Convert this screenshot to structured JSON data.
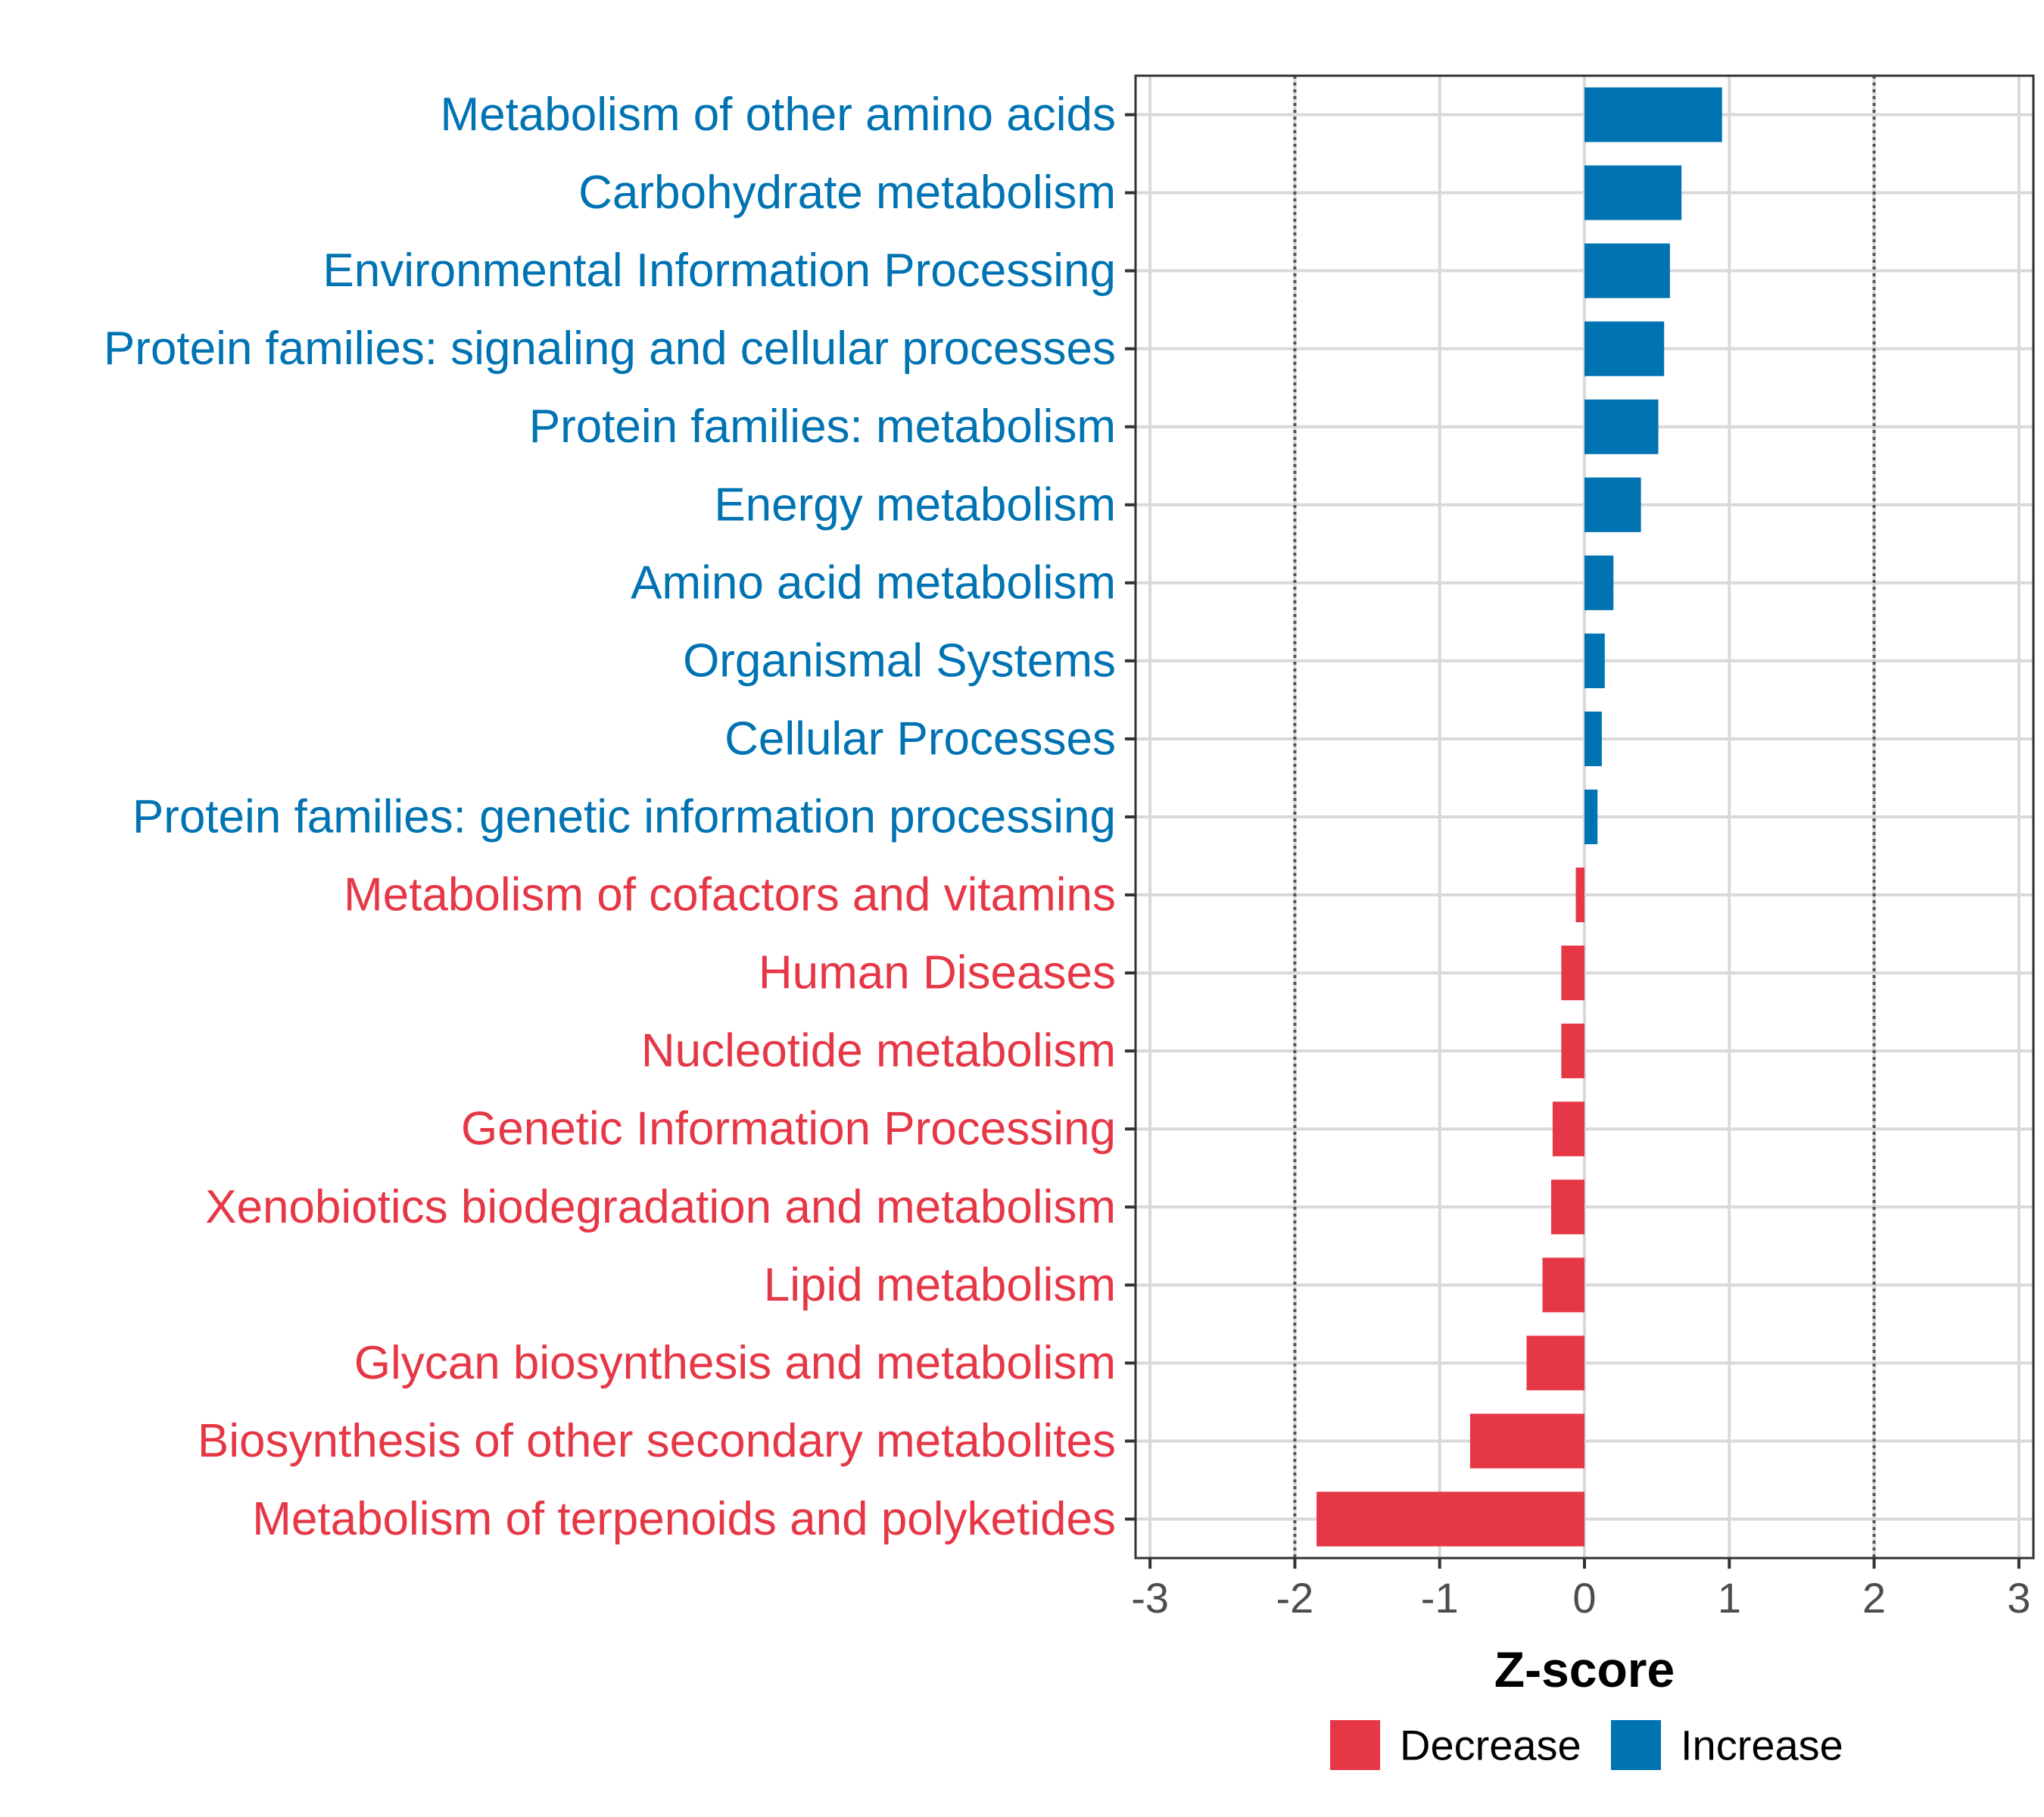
{
  "colors": {
    "increase": "#0073B3",
    "decrease": "#E63746",
    "grid": "#D9D9D9",
    "axis": "#333333",
    "reference_line": "#555555"
  },
  "legend": {
    "items": [
      {
        "label": "Decrease",
        "color": "#E63746"
      },
      {
        "label": "Increase",
        "color": "#0073B3"
      }
    ]
  },
  "chart_data": {
    "type": "bar",
    "orientation": "horizontal",
    "title": "",
    "xlabel": "Z-score",
    "ylabel": "",
    "xlim": [
      -3.1,
      3.1
    ],
    "xticks": [
      "-3",
      "-2",
      "-1",
      "0",
      "1",
      "2",
      "3"
    ],
    "xtick_values": [
      -3,
      -2,
      -1,
      0,
      1,
      2,
      3
    ],
    "reference_lines": [
      -2,
      2
    ],
    "grid": true,
    "legend_position": "bottom",
    "categories": [
      "Metabolism of other amino acids",
      "Carbohydrate metabolism",
      "Environmental Information Processing",
      "Protein families: signaling and cellular processes",
      "Protein families: metabolism",
      "Energy metabolism",
      "Amino acid metabolism",
      "Organismal Systems",
      "Cellular Processes",
      "Protein families: genetic information processing",
      "Metabolism of cofactors and vitamins",
      "Human Diseases",
      "Nucleotide metabolism",
      "Genetic Information Processing",
      "Xenobiotics biodegradation and metabolism",
      "Lipid metabolism",
      "Glycan biosynthesis and metabolism",
      "Biosynthesis of other secondary metabolites",
      "Metabolism of terpenoids and polyketides"
    ],
    "values": [
      0.95,
      0.67,
      0.59,
      0.55,
      0.51,
      0.39,
      0.2,
      0.14,
      0.12,
      0.09,
      -0.06,
      -0.16,
      -0.16,
      -0.22,
      -0.23,
      -0.29,
      -0.4,
      -0.79,
      -1.85
    ],
    "direction": [
      "Increase",
      "Increase",
      "Increase",
      "Increase",
      "Increase",
      "Increase",
      "Increase",
      "Increase",
      "Increase",
      "Increase",
      "Decrease",
      "Decrease",
      "Decrease",
      "Decrease",
      "Decrease",
      "Decrease",
      "Decrease",
      "Decrease",
      "Decrease"
    ]
  }
}
